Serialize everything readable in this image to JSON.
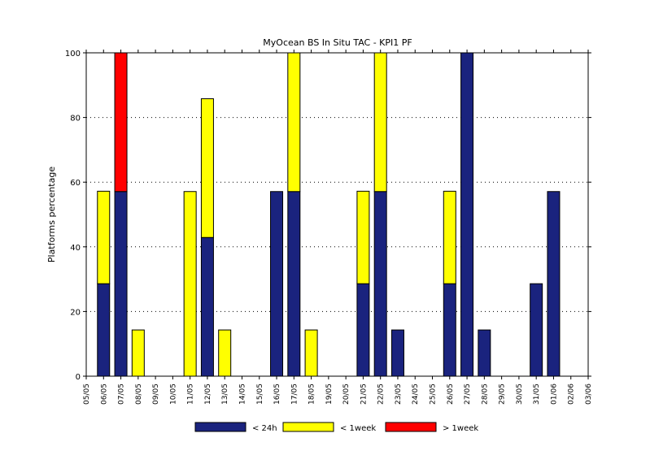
{
  "chart_data": {
    "type": "bar",
    "stacked": true,
    "title": "MyOcean  BS In Situ TAC - KPI1  PF",
    "xlabel": "",
    "ylabel": "Platforms percentage",
    "ylim": [
      0,
      100
    ],
    "yticks": [
      0,
      20,
      40,
      60,
      80,
      100
    ],
    "grid": "horizontal-dotted",
    "legend_position": "bottom",
    "categories": [
      "05/05",
      "06/05",
      "07/05",
      "08/05",
      "09/05",
      "10/05",
      "11/05",
      "12/05",
      "13/05",
      "14/05",
      "15/05",
      "16/05",
      "17/05",
      "18/05",
      "19/05",
      "20/05",
      "21/05",
      "22/05",
      "23/05",
      "24/05",
      "25/05",
      "26/05",
      "27/05",
      "28/05",
      "29/05",
      "30/05",
      "31/05",
      "01/06",
      "02/06",
      "03/06"
    ],
    "series": [
      {
        "name": "< 24h",
        "color": "#1a237e",
        "values": [
          null,
          28.6,
          57.1,
          0,
          null,
          null,
          0,
          42.9,
          0,
          null,
          null,
          57.1,
          57.1,
          0,
          null,
          null,
          28.6,
          57.1,
          14.3,
          null,
          null,
          28.6,
          100,
          14.3,
          null,
          null,
          28.6,
          57.1,
          null,
          null
        ]
      },
      {
        "name": "< 1week",
        "color": "#ffff00",
        "values": [
          null,
          28.6,
          0,
          14.3,
          null,
          null,
          57.1,
          42.9,
          14.3,
          null,
          null,
          0,
          42.9,
          14.3,
          null,
          null,
          28.6,
          42.9,
          0,
          null,
          null,
          28.6,
          0,
          0,
          null,
          null,
          0,
          0,
          null,
          null
        ]
      },
      {
        "name": "> 1week",
        "color": "#ff0000",
        "values": [
          null,
          0,
          42.9,
          0,
          null,
          null,
          0,
          0,
          0,
          null,
          null,
          0,
          0,
          0,
          null,
          null,
          0,
          0,
          0,
          null,
          null,
          0,
          0,
          0,
          null,
          null,
          0,
          0,
          null,
          null
        ]
      }
    ]
  }
}
